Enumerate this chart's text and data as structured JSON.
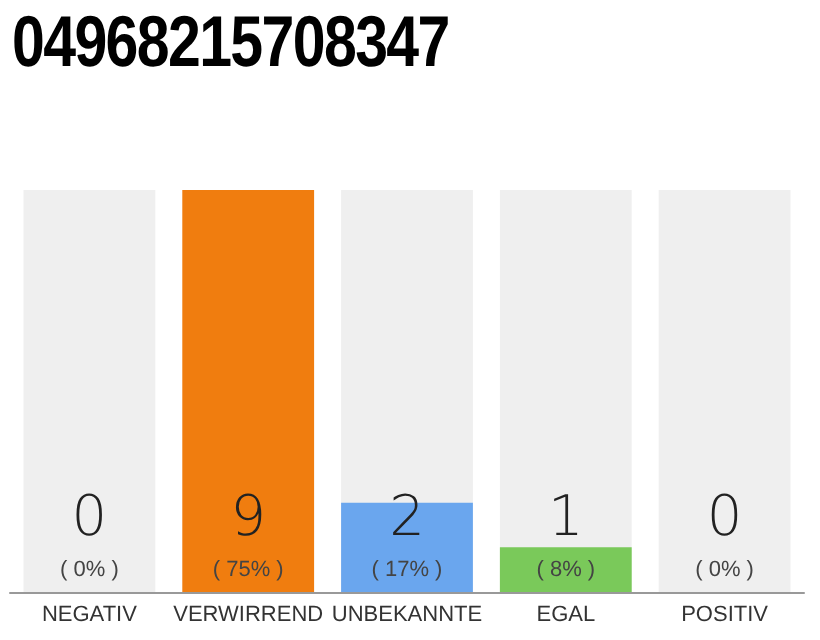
{
  "chart_data": {
    "type": "bar",
    "title": "04968215708347",
    "categories": [
      "NEGATIV",
      "VERWIRREND",
      "UNBEKANNTE",
      "EGAL",
      "POSITIV"
    ],
    "values": [
      0,
      9,
      2,
      1,
      0
    ],
    "colors": [
      "#e0413a",
      "#f07d0f",
      "#6aa6ee",
      "#7ac95a",
      "#3a9a3a"
    ],
    "value_labels": [
      "0\n( 0% )",
      "9\n( 75% )",
      "2\n( 17% )",
      "1\n( 8% )",
      "0\n( 0% )"
    ],
    "bands": [
      {
        "axis": "x",
        "from": "NEGATIV",
        "to": "NEGATIV",
        "color": "#efefef"
      },
      {
        "axis": "x",
        "from": "UNBEKANNTE",
        "to": "UNBEKANNTE",
        "color": "#efefef"
      },
      {
        "axis": "x",
        "from": "EGAL",
        "to": "EGAL",
        "color": "#efefef"
      },
      {
        "axis": "x",
        "from": "POSITIV",
        "to": "POSITIV",
        "color": "#efefef"
      }
    ]
  }
}
